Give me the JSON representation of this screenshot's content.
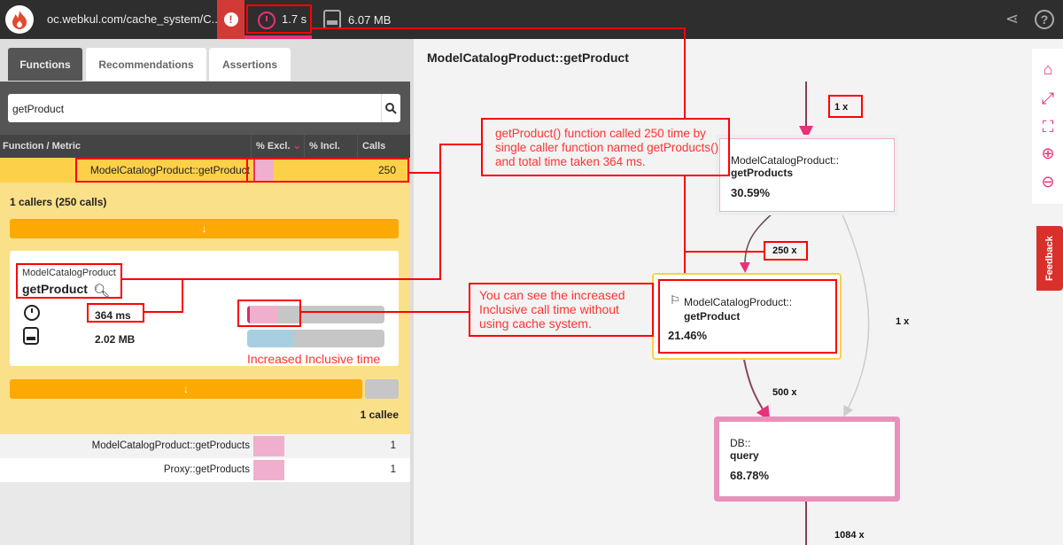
{
  "topbar": {
    "url": "oc.webkul.com/cache_system/C...",
    "time": "1.7 s",
    "memory": "6.07 MB"
  },
  "tabs": [
    "Functions",
    "Recommendations",
    "Assertions"
  ],
  "search": {
    "value": "getProduct"
  },
  "table": {
    "headers": [
      "Function / Metric",
      "% Excl.",
      "% Incl.",
      "Calls"
    ],
    "selected": {
      "name": "ModelCatalogProduct::getProduct",
      "calls": "250"
    },
    "rows": [
      {
        "name": "ModelCatalogProduct::getProducts",
        "calls": "1"
      },
      {
        "name": "Proxy::getProducts",
        "calls": "1"
      }
    ]
  },
  "detail": {
    "callers": "1 callers (250 calls)",
    "class": "ModelCatalogProduct",
    "method": "getProduct",
    "time": "364 ms",
    "memory": "2.02 MB",
    "time_fraction": 0.08,
    "incl_fraction": 0.22,
    "mem_fraction": 0.34,
    "callee": "1 callee",
    "arrow": "↓"
  },
  "graph": {
    "title": "ModelCatalogProduct::getProduct",
    "nodes": [
      {
        "class": "ModelCatalogProduct::",
        "method": "getProducts",
        "pct": "30.59%"
      },
      {
        "class": "ModelCatalogProduct::",
        "method": "getProduct",
        "pct": "21.46%"
      },
      {
        "class": "DB::",
        "method": "query",
        "pct": "68.78%"
      }
    ],
    "edges": [
      "1 x",
      "250 x",
      "1 x",
      "500 x",
      "1084 x"
    ]
  },
  "annotations": {
    "callout1": "getProduct() function called 250 time by single caller function named getProducts() and total time taken 364 ms.",
    "callout2": "You can see the increased Inclusive call time without using cache system.",
    "bar_note": "Increased Inclusive time"
  },
  "feedback": "Feedback",
  "colors": {
    "accent": "#e8317a",
    "highlight": "#fdd04a",
    "annotation": "#ff0000"
  }
}
